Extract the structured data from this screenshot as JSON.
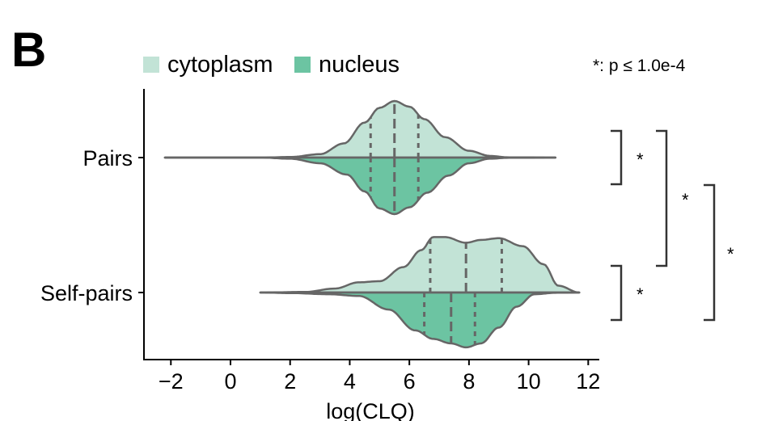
{
  "panel_label": "B",
  "significance_note": "*: p ≤ 1.0e-4",
  "colors": {
    "cytoplasm": "#c2e3d6",
    "nucleus": "#6cc4a2",
    "outline": "#666666",
    "axis": "#000000",
    "bracket": "#333333"
  },
  "chart_data": {
    "type": "violin",
    "title": "",
    "xlabel": "log(CLQ)",
    "ylabel": "",
    "xlim": [
      -2.9,
      12.3
    ],
    "xticks": [
      -2,
      0,
      2,
      4,
      6,
      8,
      10,
      12
    ],
    "xtick_labels": [
      "−2",
      "0",
      "2",
      "4",
      "6",
      "8",
      "10",
      "12"
    ],
    "categories": [
      "Pairs",
      "Self-pairs"
    ],
    "legend": {
      "placement": "top-left",
      "entries": [
        {
          "label": "cytoplasm",
          "color_key": "cytoplasm"
        },
        {
          "label": "nucleus",
          "color_key": "nucleus"
        }
      ]
    },
    "split": true,
    "series": [
      {
        "name": "cytoplasm",
        "side": "upper",
        "groups": [
          {
            "category": "Pairs",
            "range": [
              -2.2,
              10.9
            ],
            "quartiles": [
              4.7,
              5.5,
              6.3
            ],
            "density": [
              [
                -2.2,
                0
              ],
              [
                1.0,
                0
              ],
              [
                2.0,
                0.01
              ],
              [
                3.0,
                0.06
              ],
              [
                3.8,
                0.25
              ],
              [
                4.5,
                0.62
              ],
              [
                5.0,
                0.88
              ],
              [
                5.5,
                1.0
              ],
              [
                6.0,
                0.9
              ],
              [
                6.5,
                0.68
              ],
              [
                7.2,
                0.36
              ],
              [
                8.0,
                0.12
              ],
              [
                8.7,
                0.03
              ],
              [
                9.3,
                0.005
              ],
              [
                10.9,
                0
              ]
            ]
          },
          {
            "category": "Self-pairs",
            "range": [
              1.0,
              11.7
            ],
            "quartiles": [
              6.7,
              7.9,
              9.1
            ],
            "density": [
              [
                1.0,
                0
              ],
              [
                2.5,
                0.01
              ],
              [
                3.5,
                0.07
              ],
              [
                4.3,
                0.18
              ],
              [
                5.0,
                0.2
              ],
              [
                5.8,
                0.45
              ],
              [
                6.4,
                0.75
              ],
              [
                6.8,
                0.98
              ],
              [
                7.2,
                0.98
              ],
              [
                7.9,
                0.88
              ],
              [
                8.4,
                0.93
              ],
              [
                9.0,
                0.96
              ],
              [
                9.8,
                0.82
              ],
              [
                10.5,
                0.5
              ],
              [
                11.0,
                0.12
              ],
              [
                11.7,
                0
              ]
            ]
          }
        ]
      },
      {
        "name": "nucleus",
        "side": "lower",
        "groups": [
          {
            "category": "Pairs",
            "range": [
              -2.2,
              10.9
            ],
            "quartiles": [
              4.7,
              5.5,
              6.3
            ],
            "density": [
              [
                -2.2,
                0
              ],
              [
                1.0,
                0
              ],
              [
                2.0,
                0.02
              ],
              [
                3.0,
                0.1
              ],
              [
                3.9,
                0.3
              ],
              [
                4.5,
                0.6
              ],
              [
                5.0,
                0.9
              ],
              [
                5.5,
                1.0
              ],
              [
                6.0,
                0.88
              ],
              [
                6.6,
                0.62
              ],
              [
                7.3,
                0.32
              ],
              [
                8.0,
                0.1
              ],
              [
                8.7,
                0.02
              ],
              [
                9.3,
                0.005
              ],
              [
                10.9,
                0
              ]
            ]
          },
          {
            "category": "Self-pairs",
            "range": [
              1.0,
              11.7
            ],
            "quartiles": [
              6.5,
              7.4,
              8.2
            ],
            "density": [
              [
                1.0,
                0
              ],
              [
                2.0,
                0.01
              ],
              [
                3.3,
                0.03
              ],
              [
                4.3,
                0.06
              ],
              [
                5.3,
                0.3
              ],
              [
                6.2,
                0.67
              ],
              [
                6.8,
                0.82
              ],
              [
                7.4,
                0.9
              ],
              [
                7.9,
                0.97
              ],
              [
                8.4,
                0.9
              ],
              [
                9.0,
                0.62
              ],
              [
                9.6,
                0.25
              ],
              [
                10.2,
                0.03
              ],
              [
                10.9,
                0.005
              ],
              [
                11.7,
                0
              ]
            ]
          }
        ]
      }
    ],
    "annotations": [
      {
        "type": "bracket",
        "between": [
          "Pairs/cytoplasm",
          "Pairs/nucleus"
        ],
        "label": "*"
      },
      {
        "type": "bracket",
        "between": [
          "Pairs/cytoplasm",
          "Self-pairs/cytoplasm"
        ],
        "label": "*"
      },
      {
        "type": "bracket",
        "between": [
          "Pairs/nucleus",
          "Self-pairs/nucleus"
        ],
        "label": "*"
      },
      {
        "type": "bracket",
        "between": [
          "Self-pairs/cytoplasm",
          "Self-pairs/nucleus"
        ],
        "label": "*"
      }
    ]
  }
}
